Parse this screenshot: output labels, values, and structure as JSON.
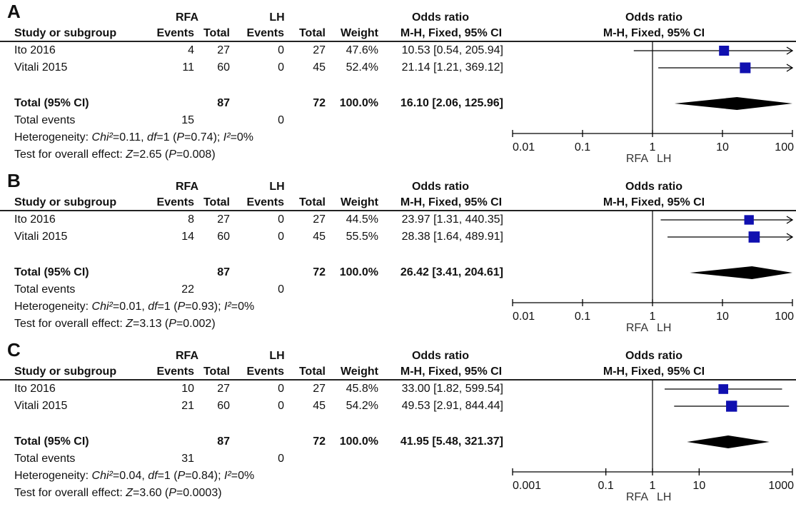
{
  "chart_data": [
    {
      "type": "forest",
      "panel_label": "A",
      "header": {
        "group1": "RFA",
        "group2": "LH",
        "col_study": "Study or subgroup",
        "col_events": "Events",
        "col_total": "Total",
        "col_weight": "Weight",
        "col_or": "Odds  ratio",
        "col_method": "M-H, Fixed, 95% CI",
        "plot_title": "Odds  ratio",
        "plot_method": "M-H, Fixed, 95% CI"
      },
      "studies": [
        {
          "name": "Ito 2016",
          "e1": "4",
          "t1": "27",
          "e2": "0",
          "t2": "27",
          "weight": "47.6%",
          "ci_text": "10.53 [0.54, 205.94]",
          "or": 10.53,
          "lo": 0.54,
          "hi": 205.94
        },
        {
          "name": "Vitali 2015",
          "e1": "11",
          "t1": "60",
          "e2": "0",
          "t2": "45",
          "weight": "52.4%",
          "ci_text": "21.14 [1.21, 369.12]",
          "or": 21.14,
          "lo": 1.21,
          "hi": 369.12
        }
      ],
      "total": {
        "label": "Total (95% CI)",
        "t1": "87",
        "t2": "72",
        "weight": "100.0%",
        "ci_text": "16.10 [2.06, 125.96]",
        "or": 16.1,
        "lo": 2.06,
        "hi": 125.96
      },
      "total_events": {
        "label": "Total events",
        "e1": "15",
        "e2": "0"
      },
      "heterogeneity": {
        "label": "Heterogeneity: ",
        "chi_label": "Chi²",
        "chi_value": "=0.11, ",
        "df_label": "df",
        "df_value": "=1 (",
        "p_label": "P",
        "p_value": "=0.74); ",
        "i_label": "I²",
        "i_value": "=0%"
      },
      "overall": {
        "label": "Test for overall effect: ",
        "z_label": "Z",
        "z_value": "=2.65 (",
        "p_label": "P",
        "p_value": "=0.008)"
      },
      "axis": {
        "min": 0.01,
        "max": 100,
        "ticks": [
          0.01,
          0.1,
          1,
          10,
          100
        ],
        "tick_labels": [
          "0.01",
          "0.1",
          "1",
          "10",
          "100"
        ],
        "favours_left": "RFA",
        "favours_right": "LH"
      }
    },
    {
      "type": "forest",
      "panel_label": "B",
      "header": {
        "group1": "RFA",
        "group2": "LH",
        "col_study": "Study or subgroup",
        "col_events": "Events",
        "col_total": "Total",
        "col_weight": "Weight",
        "col_or": "Odds  ratio",
        "col_method": "M-H, Fixed, 95% CI",
        "plot_title": "Odds  ratio",
        "plot_method": "M-H, Fixed, 95% CI"
      },
      "studies": [
        {
          "name": "Ito 2016",
          "e1": "8",
          "t1": "27",
          "e2": "0",
          "t2": "27",
          "weight": "44.5%",
          "ci_text": "23.97 [1.31, 440.35]",
          "or": 23.97,
          "lo": 1.31,
          "hi": 440.35
        },
        {
          "name": "Vitali 2015",
          "e1": "14",
          "t1": "60",
          "e2": "0",
          "t2": "45",
          "weight": "55.5%",
          "ci_text": "28.38 [1.64, 489.91]",
          "or": 28.38,
          "lo": 1.64,
          "hi": 489.91
        }
      ],
      "total": {
        "label": "Total (95% CI)",
        "t1": "87",
        "t2": "72",
        "weight": "100.0%",
        "ci_text": "26.42 [3.41, 204.61]",
        "or": 26.42,
        "lo": 3.41,
        "hi": 204.61
      },
      "total_events": {
        "label": "Total events",
        "e1": "22",
        "e2": "0"
      },
      "heterogeneity": {
        "label": "Heterogeneity: ",
        "chi_label": "Chi²",
        "chi_value": "=0.01, ",
        "df_label": "df",
        "df_value": "=1 (",
        "p_label": "P",
        "p_value": "=0.93); ",
        "i_label": "I²",
        "i_value": "=0%"
      },
      "overall": {
        "label": "Test for overall effect: ",
        "z_label": "Z",
        "z_value": "=3.13 (",
        "p_label": "P",
        "p_value": "=0.002)"
      },
      "axis": {
        "min": 0.01,
        "max": 100,
        "ticks": [
          0.01,
          0.1,
          1,
          10,
          100
        ],
        "tick_labels": [
          "0.01",
          "0.1",
          "1",
          "10",
          "100"
        ],
        "favours_left": "RFA",
        "favours_right": "LH"
      }
    },
    {
      "type": "forest",
      "panel_label": "C",
      "header": {
        "group1": "RFA",
        "group2": "LH",
        "col_study": "Study or subgroup",
        "col_events": "Events",
        "col_total": "Total",
        "col_weight": "Weight",
        "col_or": "Odds  ratio",
        "col_method": "M-H, Fixed, 95% CI",
        "plot_title": "Odds  ratio",
        "plot_method": "M-H, Fixed, 95% CI"
      },
      "studies": [
        {
          "name": "Ito 2016",
          "e1": "10",
          "t1": "27",
          "e2": "0",
          "t2": "27",
          "weight": "45.8%",
          "ci_text": "33.00 [1.82, 599.54]",
          "or": 33.0,
          "lo": 1.82,
          "hi": 599.54
        },
        {
          "name": "Vitali 2015",
          "e1": "21",
          "t1": "60",
          "e2": "0",
          "t2": "45",
          "weight": "54.2%",
          "ci_text": "49.53 [2.91, 844.44]",
          "or": 49.53,
          "lo": 2.91,
          "hi": 844.44
        }
      ],
      "total": {
        "label": "Total (95% CI)",
        "t1": "87",
        "t2": "72",
        "weight": "100.0%",
        "ci_text": "41.95 [5.48, 321.37]",
        "or": 41.95,
        "lo": 5.48,
        "hi": 321.37
      },
      "total_events": {
        "label": "Total events",
        "e1": "31",
        "e2": "0"
      },
      "heterogeneity": {
        "label": "Heterogeneity: ",
        "chi_label": "Chi²",
        "chi_value": "=0.04, ",
        "df_label": "df",
        "df_value": "=1 (",
        "p_label": "P",
        "p_value": "=0.84); ",
        "i_label": "I²",
        "i_value": "=0%"
      },
      "overall": {
        "label": "Test for overall effect: ",
        "z_label": "Z",
        "z_value": "=3.60 (",
        "p_label": "P",
        "p_value": "=0.0003)"
      },
      "axis": {
        "min": 0.001,
        "max": 1000,
        "ticks": [
          0.001,
          0.1,
          1,
          10,
          1000
        ],
        "tick_labels": [
          "0.001",
          "0.1",
          "1",
          "10",
          "1000"
        ],
        "favours_left": "RFA",
        "favours_right": "LH"
      }
    }
  ],
  "colors": {
    "marker": "#1010b0",
    "diamond": "#000000",
    "line": "#000000"
  }
}
